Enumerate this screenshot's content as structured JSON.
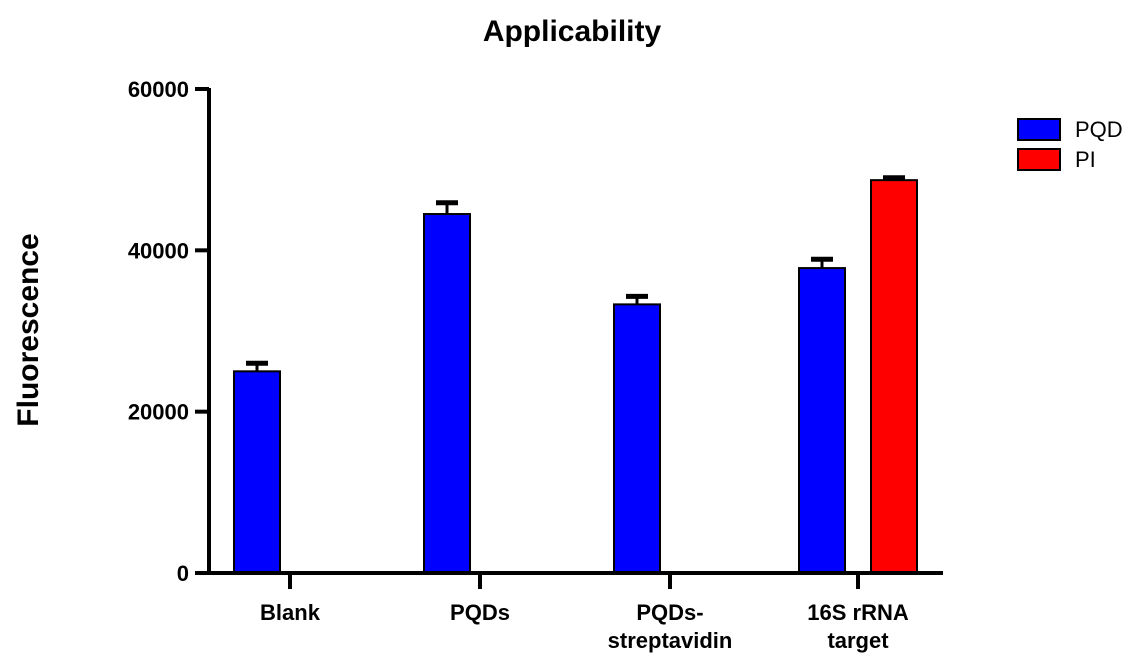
{
  "chart_data": {
    "type": "bar",
    "title": "Applicability",
    "xlabel": "",
    "ylabel": "Fluorescence",
    "ylim": [
      0,
      60000
    ],
    "yticks": [
      0,
      20000,
      40000,
      60000
    ],
    "categories": [
      [
        "Blank"
      ],
      [
        "PQDs"
      ],
      [
        "PQDs-",
        "streptavidin"
      ],
      [
        "16S rRNA",
        "target"
      ]
    ],
    "series": [
      {
        "name": "PQD",
        "color": "#0000ff",
        "values": [
          25000,
          44500,
          33300,
          37800
        ],
        "errors": [
          1000,
          1400,
          1000,
          1100
        ]
      },
      {
        "name": "PI",
        "color": "#ff0000",
        "values": [
          null,
          null,
          null,
          48700
        ],
        "errors": [
          null,
          null,
          null,
          300
        ]
      }
    ],
    "grid": false,
    "legend": "top-right"
  }
}
